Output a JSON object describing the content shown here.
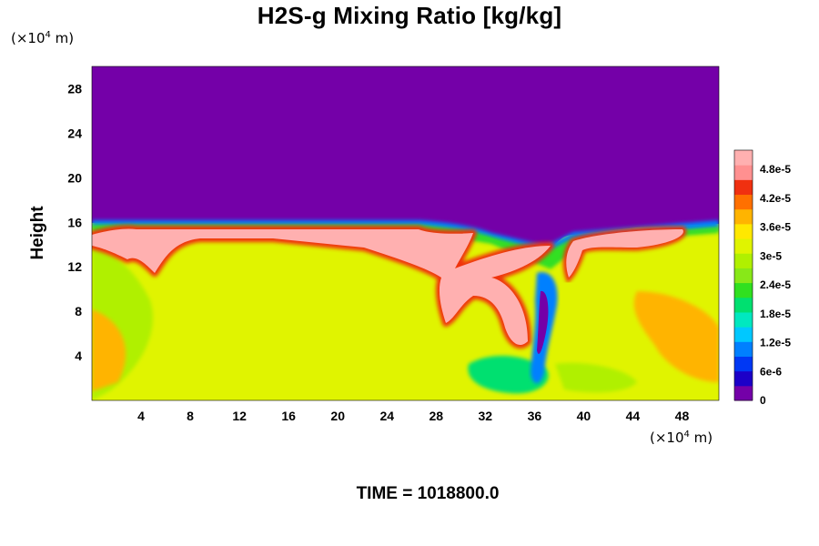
{
  "chart_data": {
    "type": "heatmap",
    "title": "H2S-g Mixing Ratio [kg/kg]",
    "ylabel": "Height",
    "xlabel": "",
    "x_unit": {
      "prefix": "(×10",
      "exp": "4",
      "suffix": " m)"
    },
    "y_unit": {
      "prefix": "(×10",
      "exp": "4",
      "suffix": " m)"
    },
    "xlim": [
      0,
      51
    ],
    "ylim": [
      0,
      30
    ],
    "x_ticks": [
      4,
      8,
      12,
      16,
      20,
      24,
      28,
      32,
      36,
      40,
      44,
      48
    ],
    "y_ticks": [
      4,
      8,
      12,
      16,
      20,
      24,
      28
    ],
    "colorbar": {
      "range": [
        0,
        5.2e-05
      ],
      "ticks": [
        {
          "value": 0,
          "label": "0"
        },
        {
          "value": 6e-06,
          "label": "6e-6"
        },
        {
          "value": 1.2e-05,
          "label": "1.2e-5"
        },
        {
          "value": 1.8e-05,
          "label": "1.8e-5"
        },
        {
          "value": 2.4e-05,
          "label": "2.4e-5"
        },
        {
          "value": 3e-05,
          "label": "3e-5"
        },
        {
          "value": 3.6e-05,
          "label": "3.6e-5"
        },
        {
          "value": 4.2e-05,
          "label": "4.2e-5"
        },
        {
          "value": 4.8e-05,
          "label": "4.8e-5"
        }
      ],
      "colors": [
        "#7400a8",
        "#1c00c8",
        "#0038f4",
        "#0080ff",
        "#00c8ff",
        "#00e8c0",
        "#00e070",
        "#30e020",
        "#88e818",
        "#b0f000",
        "#e0f400",
        "#ffe800",
        "#ffb400",
        "#ff7000",
        "#f03010",
        "#ff9090",
        "#ffb0b0"
      ]
    },
    "regions_description_values": {
      "upper_background": 0,
      "lower_background": 3.3e-05,
      "plume_core": 5e-05
    },
    "time_label": "TIME = 1018800.0"
  }
}
